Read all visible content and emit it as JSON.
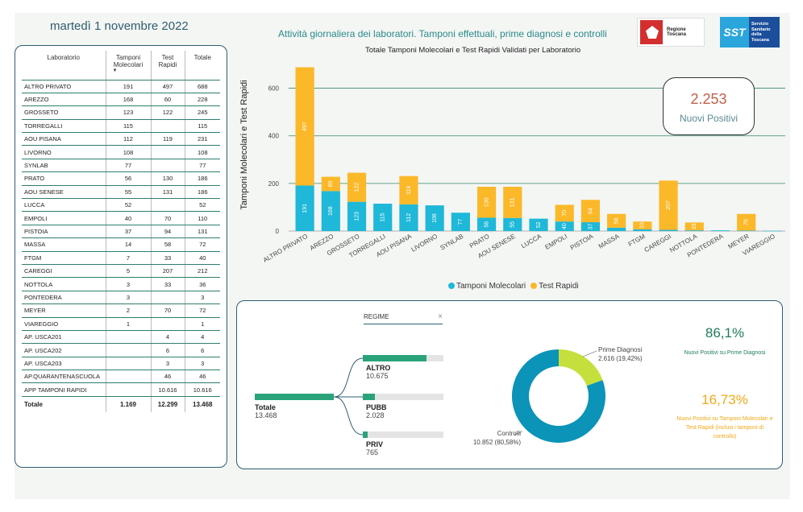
{
  "header": {
    "date": "martedì 1 novembre 2022",
    "title": "Attività giornaliera dei laboratori. Tamponi effettuali, prime diagnosi e controlli",
    "logo_rt_text": "Regione Toscana",
    "logo_sst_mark": "SST",
    "logo_sst_text": [
      "Servizio",
      "Sanitario",
      "della",
      "Toscana"
    ]
  },
  "table": {
    "headers": [
      "Laboratorio",
      "Tamponi Molecolari",
      "Test Rapidi",
      "Totale"
    ],
    "rows": [
      [
        "ALTRO PRIVATO",
        "191",
        "497",
        "688"
      ],
      [
        "AREZZO",
        "168",
        "60",
        "228"
      ],
      [
        "GROSSETO",
        "123",
        "122",
        "245"
      ],
      [
        "TORREGALLI",
        "115",
        "",
        "115"
      ],
      [
        "AOU PISANA",
        "112",
        "119",
        "231"
      ],
      [
        "LIVORNO",
        "108",
        "",
        "108"
      ],
      [
        "SYNLAB",
        "77",
        "",
        "77"
      ],
      [
        "PRATO",
        "56",
        "130",
        "186"
      ],
      [
        "AOU SENESE",
        "55",
        "131",
        "186"
      ],
      [
        "LUCCA",
        "52",
        "",
        "52"
      ],
      [
        "EMPOLI",
        "40",
        "70",
        "110"
      ],
      [
        "PISTOIA",
        "37",
        "94",
        "131"
      ],
      [
        "MASSA",
        "14",
        "58",
        "72"
      ],
      [
        "FTGM",
        "7",
        "33",
        "40"
      ],
      [
        "CAREGGI",
        "5",
        "207",
        "212"
      ],
      [
        "NOTTOLA",
        "3",
        "33",
        "36"
      ],
      [
        "PONTEDERA",
        "3",
        "",
        "3"
      ],
      [
        "MEYER",
        "2",
        "70",
        "72"
      ],
      [
        "VIAREGGIO",
        "1",
        "",
        "1"
      ],
      [
        "AP. USCA201",
        "",
        "4",
        "4"
      ],
      [
        "AP. USCA202",
        "",
        "6",
        "6"
      ],
      [
        "AP. USCA203",
        "",
        "3",
        "3"
      ],
      [
        "AP.QUARANTENASCUOLA",
        "",
        "46",
        "46"
      ],
      [
        "APP TAMPONI RAPIDI",
        "",
        "10.616",
        "10.616"
      ]
    ],
    "total": [
      "Totale",
      "1.169",
      "12.299",
      "13.468"
    ]
  },
  "chart_data": {
    "type": "bar",
    "stacked": true,
    "title": "Totale Tamponi Molecolari e Test Rapidi Validati per Laboratorio",
    "xlabel": "",
    "ylabel": "Tamponi Molecolari e Test Rapidi",
    "ylim": [
      0,
      700
    ],
    "yticks": [
      0,
      200,
      400,
      600
    ],
    "grid": true,
    "legend_position": "bottom",
    "categories": [
      "ALTRO PRIVATO",
      "AREZZO",
      "GROSSETO",
      "TORREGALLI",
      "AOU PISANA",
      "LIVORNO",
      "SYNLAB",
      "PRATO",
      "AOU SENESE",
      "LUCCA",
      "EMPOLI",
      "PISTOIA",
      "MASSA",
      "FTGM",
      "CAREGGI",
      "NOTTOLA",
      "PONTEDERA",
      "MEYER",
      "VIAREGGIO"
    ],
    "series": [
      {
        "name": "Tamponi Molecolari",
        "color": "#1fb8d8",
        "values": [
          191,
          168,
          123,
          115,
          112,
          108,
          77,
          56,
          55,
          52,
          40,
          37,
          14,
          7,
          5,
          3,
          3,
          2,
          1
        ]
      },
      {
        "name": "Test Rapidi",
        "color": "#fbb829",
        "values": [
          497,
          60,
          122,
          0,
          119,
          0,
          0,
          130,
          131,
          0,
          70,
          94,
          58,
          33,
          207,
          33,
          0,
          70,
          0
        ]
      }
    ]
  },
  "kpi": {
    "positivi_value": "2.253",
    "positivi_label": "Nuovi Positivi",
    "ratio1_value": "86,1%",
    "ratio1_label": "Nuovi Positivi su Prime Diagnosi",
    "ratio2_value": "16,73%",
    "ratio2_label": "Nuovi Positivi su Tamponi Molecolari e Test Rapidi (inclusi i tamponi di controllo)"
  },
  "decomposition": {
    "filter_label": "REGIME",
    "close_glyph": "×",
    "total_label": "Totale",
    "total_value": "13.468",
    "total_number": 13468,
    "branches": [
      {
        "label": "ALTRO",
        "value": "10.675",
        "number": 10675
      },
      {
        "label": "PUBB",
        "value": "2.028",
        "number": 2028
      },
      {
        "label": "PRIV",
        "value": "765",
        "number": 765
      }
    ]
  },
  "donut": {
    "segments": [
      {
        "label": "Prime Diagnosi",
        "value_text": "2.616 (19,42%)",
        "value": 2616,
        "color": "#c5e03c"
      },
      {
        "label": "Controlli",
        "value_text": "10.852 (80,58%)",
        "value": 10852,
        "color": "#0b93b8"
      }
    ]
  }
}
